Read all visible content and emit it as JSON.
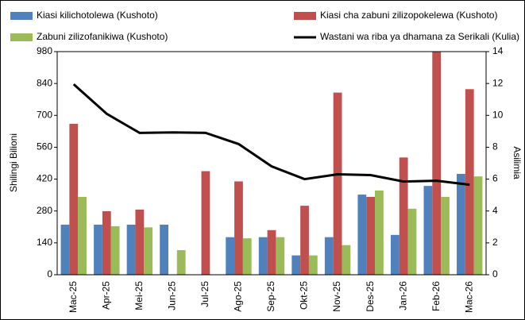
{
  "chart_data": {
    "type": "bar-line",
    "y_label": "Shilingi Bilioni",
    "y2_label": "Asilimia",
    "categories": [
      "Mac-25",
      "Apr-25",
      "Mei-25",
      "Jun-25",
      "Jul-25",
      "Ago-25",
      "Sep-25",
      "Okt-25",
      "Nov-25",
      "Des-25",
      "Jan-26",
      "Feb-26",
      "Mac-26"
    ],
    "series": [
      {
        "name": "Kiasi kilichotolewa (Kushoto)",
        "type": "bar",
        "color": "#4f81bd",
        "values": [
          220,
          220,
          220,
          220,
          null,
          165,
          165,
          85,
          165,
          352,
          175,
          390,
          443
        ]
      },
      {
        "name": "Kiasi cha zabuni zilizopokelewa (Kushoto)",
        "type": "bar",
        "color": "#c0504d",
        "values": [
          663,
          279,
          286,
          null,
          455,
          410,
          196,
          303,
          800,
          342,
          515,
          985,
          815
        ]
      },
      {
        "name": "Zabuni zilizofanikiwa (Kushoto)",
        "type": "bar",
        "color": "#9bbb59",
        "values": [
          342,
          213,
          208,
          108,
          null,
          160,
          165,
          85,
          130,
          370,
          290,
          342,
          432
        ]
      },
      {
        "name": "Wastani wa riba ya dhamana za Serikali (Kulia)",
        "type": "line",
        "axis": "y2",
        "color": "#000000",
        "values": [
          11.95,
          10.1,
          8.9,
          8.93,
          8.9,
          8.2,
          6.8,
          6.0,
          6.3,
          6.25,
          5.85,
          5.9,
          5.65
        ]
      }
    ],
    "ylim": [
      0,
      980
    ],
    "yticks": [
      0,
      140,
      280,
      420,
      560,
      700,
      840,
      980
    ],
    "y2lim": [
      0,
      14
    ],
    "y2ticks": [
      0,
      2,
      4,
      6,
      8,
      10,
      12,
      14
    ]
  }
}
